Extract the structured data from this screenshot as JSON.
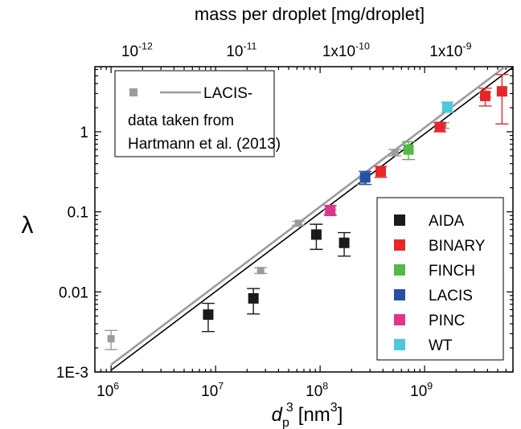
{
  "chart_data": {
    "type": "scatter",
    "x_scale": "log",
    "y_scale": "log",
    "xlabel_base": "d",
    "xlabel_sub": "p",
    "xlabel_sup": "3",
    "xlabel_unit": "[nm",
    "xlabel_unit_sup": "3",
    "xlabel_close": "]",
    "ylabel": "λ",
    "x2label": "mass per droplet [mg/droplet]",
    "xlim": [
      700000,
      7000000000
    ],
    "ylim": [
      0.001,
      6.5
    ],
    "x_ticks": [
      {
        "value": 1000000,
        "base": "10",
        "exp": "6"
      },
      {
        "value": 10000000,
        "base": "10",
        "exp": "7"
      },
      {
        "value": 100000000,
        "base": "10",
        "exp": "8"
      },
      {
        "value": 1000000000,
        "base": "10",
        "exp": "9"
      }
    ],
    "y_ticks": [
      {
        "value": 0.001,
        "label": "1E-3"
      },
      {
        "value": 0.01,
        "label": "0.01"
      },
      {
        "value": 0.1,
        "label": "0.1"
      },
      {
        "value": 1,
        "label": "1"
      }
    ],
    "x2_ticks": [
      {
        "value": 1900000,
        "base": "10",
        "exp": "-12"
      },
      {
        "value": 19000000,
        "base": "10",
        "exp": "-11"
      },
      {
        "value": 190000000,
        "base": "1x10",
        "exp": "-10"
      },
      {
        "value": 1900000000,
        "base": "1x10",
        "exp": "-9"
      }
    ],
    "fit_lines": [
      {
        "name": "LACIS-",
        "color": "#9b9b9b",
        "x": [
          1000000,
          7000000000
        ],
        "y": [
          0.00123,
          7.7
        ]
      },
      {
        "name": "",
        "color": "#000000",
        "x": [
          1000000,
          7000000000
        ],
        "y": [
          0.00105,
          6.4
        ]
      }
    ],
    "series": [
      {
        "name": "AIDA",
        "color": "#1a1a1a",
        "points": [
          {
            "x": 8500000,
            "y": 0.0052,
            "lo": 0.0032,
            "hi": 0.0072
          },
          {
            "x": 23000000,
            "y": 0.0083,
            "lo": 0.0053,
            "hi": 0.011
          },
          {
            "x": 92000000,
            "y": 0.052,
            "lo": 0.034,
            "hi": 0.07
          },
          {
            "x": 170000000,
            "y": 0.041,
            "lo": 0.028,
            "hi": 0.055
          }
        ]
      },
      {
        "name": "BINARY",
        "color": "#e8262a",
        "points": [
          {
            "x": 380000000,
            "y": 0.32,
            "lo": 0.27,
            "hi": 0.37
          },
          {
            "x": 1400000000,
            "y": 1.15,
            "lo": 1.0,
            "hi": 1.3
          },
          {
            "x": 3800000000,
            "y": 2.8,
            "lo": 2.1,
            "hi": 3.5
          },
          {
            "x": 5500000000,
            "y": 3.2,
            "lo": 1.25,
            "hi": 5.2
          }
        ]
      },
      {
        "name": "FINCH",
        "color": "#55b848",
        "points": [
          {
            "x": 700000000,
            "y": 0.6,
            "lo": 0.45,
            "hi": 0.75
          }
        ]
      },
      {
        "name": "LACIS",
        "color": "#2650a3",
        "points": [
          {
            "x": 270000000,
            "y": 0.27,
            "lo": 0.22,
            "hi": 0.32
          }
        ]
      },
      {
        "name": "PINC",
        "color": "#e0338a",
        "points": [
          {
            "x": 125000000,
            "y": 0.105,
            "lo": 0.09,
            "hi": 0.12
          }
        ]
      },
      {
        "name": "WT",
        "color": "#4cc8dd",
        "points": [
          {
            "x": 1650000000,
            "y": 2.05,
            "lo": 1.75,
            "hi": 2.35
          }
        ]
      }
    ],
    "gray_data": {
      "name": "LACIS-",
      "color": "#9b9b9b",
      "points": [
        {
          "x": 1000000,
          "y": 0.0026,
          "lo": 0.0019,
          "hi": 0.0033
        },
        {
          "x": 27000000,
          "y": 0.0185,
          "lo": 0.017,
          "hi": 0.02
        },
        {
          "x": 62000000,
          "y": 0.072,
          "lo": 0.068,
          "hi": 0.076
        },
        {
          "x": 125000000,
          "y": 0.1,
          "lo": 0.094,
          "hi": 0.106
        },
        {
          "x": 260000000,
          "y": 0.24,
          "lo": 0.22,
          "hi": 0.26
        },
        {
          "x": 520000000,
          "y": 0.55,
          "lo": 0.5,
          "hi": 0.6
        },
        {
          "x": 1500000000,
          "y": 1.2,
          "lo": 1.1,
          "hi": 1.3
        },
        {
          "x": 3800000000,
          "y": 2.9,
          "lo": 2.7,
          "hi": 3.1
        }
      ]
    },
    "legend_top": {
      "line1": "LACIS-",
      "line2": "data taken from",
      "line3": "Hartmann et al. (2013)",
      "position": "top-left"
    },
    "legend_position": "bottom-right"
  }
}
